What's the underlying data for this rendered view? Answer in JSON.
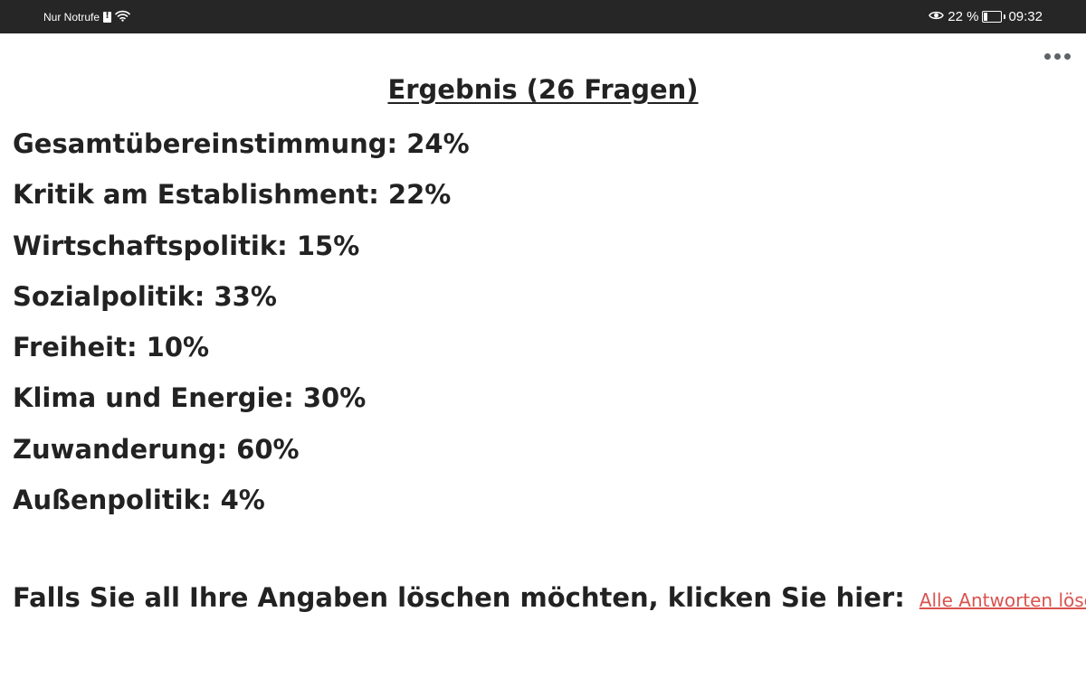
{
  "status_bar": {
    "carrier_text": "Nur Notrufe",
    "battery_percent_text": "22 %",
    "battery_level": 0.22,
    "time": "09:32"
  },
  "page": {
    "title": "Ergebnis (26 Fragen)",
    "results": [
      {
        "label": "Gesamtübereinstimmung: 24%"
      },
      {
        "label": "Kritik am Establishment: 22%"
      },
      {
        "label": "Wirtschaftspolitik: 15%"
      },
      {
        "label": "Sozialpolitik: 33%"
      },
      {
        "label": "Freiheit: 10%"
      },
      {
        "label": "Klima und Energie: 30%"
      },
      {
        "label": "Zuwanderung: 60%"
      },
      {
        "label": "Außenpolitik: 4%"
      }
    ],
    "delete_prompt": "Falls Sie all Ihre Angaben löschen möchten, klicken Sie hier:",
    "delete_link": "Alle Antworten löschen"
  },
  "colors": {
    "status_bar_bg": "#262626",
    "text": "#222222",
    "link": "#d9534f"
  },
  "icons": [
    "sim-alert-icon",
    "wifi-icon",
    "eye-icon",
    "battery-icon",
    "more-options-icon"
  ]
}
